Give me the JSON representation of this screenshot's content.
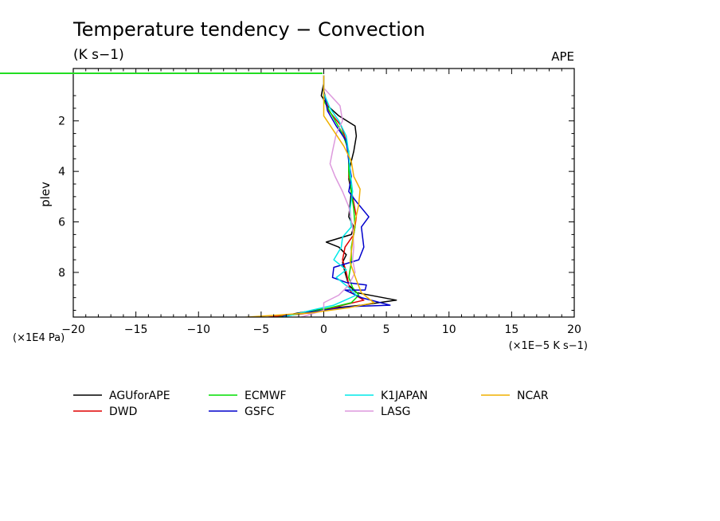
{
  "chart_data": {
    "type": "line",
    "title": "Temperature tendency − Convection",
    "units_label": "(K s−1)",
    "tag": "APE",
    "ylabel": "plev",
    "x_unit_label": "(×1E−5 K s−1)",
    "y_unit_label": "(×1E4 Pa)",
    "xlim": [
      -20,
      20
    ],
    "ylim": [
      0,
      9.8
    ],
    "y_inverted": true,
    "x_ticks": [
      -20,
      -15,
      -10,
      -5,
      0,
      5,
      10,
      15,
      20
    ],
    "x_tick_labels": [
      "−20",
      "−15",
      "−10",
      "−5",
      "0",
      "5",
      "10",
      "15",
      "20"
    ],
    "y_ticks": [
      2,
      4,
      6,
      8
    ],
    "y_tick_labels": [
      "2",
      "4",
      "6",
      "8"
    ],
    "series": [
      {
        "name": "AGUforAPE",
        "color": "#000000",
        "points": [
          [
            0,
            0.2
          ],
          [
            0,
            0.5
          ],
          [
            -0.2,
            1
          ],
          [
            0.3,
            1.4
          ],
          [
            1.2,
            1.8
          ],
          [
            2.5,
            2.2
          ],
          [
            2.6,
            2.6
          ],
          [
            2.4,
            3.2
          ],
          [
            2.1,
            3.8
          ],
          [
            2.0,
            4.3
          ],
          [
            2.2,
            4.8
          ],
          [
            2.1,
            5.3
          ],
          [
            2.0,
            5.8
          ],
          [
            2.4,
            6.2
          ],
          [
            2.2,
            6.5
          ],
          [
            0.2,
            6.8
          ],
          [
            1.2,
            7.0
          ],
          [
            1.8,
            7.3
          ],
          [
            1.5,
            7.6
          ],
          [
            1.7,
            8.0
          ],
          [
            2.0,
            8.5
          ],
          [
            2.6,
            8.8
          ],
          [
            5.8,
            9.1
          ],
          [
            3.0,
            9.3
          ],
          [
            0,
            9.45
          ],
          [
            -2,
            9.6
          ],
          [
            -4,
            9.8
          ]
        ]
      },
      {
        "name": "DWD",
        "color": "#e00000",
        "points": [
          [
            0,
            0.2
          ],
          [
            0,
            0.8
          ],
          [
            0.4,
            1.6
          ],
          [
            1.4,
            2.2
          ],
          [
            1.8,
            2.8
          ],
          [
            2.0,
            3.4
          ],
          [
            2.0,
            4.2
          ],
          [
            2.3,
            5.0
          ],
          [
            2.6,
            5.8
          ],
          [
            2.4,
            6.5
          ],
          [
            1.7,
            7.0
          ],
          [
            1.5,
            7.5
          ],
          [
            1.8,
            8.0
          ],
          [
            2.0,
            8.5
          ],
          [
            2.2,
            8.8
          ],
          [
            3.2,
            9.1
          ],
          [
            1.5,
            9.3
          ],
          [
            0.5,
            9.45
          ],
          [
            -1,
            9.6
          ],
          [
            -5,
            9.8
          ]
        ]
      },
      {
        "name": "ECMWF",
        "color": "#00dd00",
        "points": [
          [
            0,
            0.2
          ],
          [
            0,
            0.6
          ],
          [
            0,
            1.2
          ],
          [
            0.8,
            1.9
          ],
          [
            1.5,
            2.5
          ],
          [
            2.0,
            3.2
          ],
          [
            2.0,
            4.0
          ],
          [
            2.2,
            4.8
          ],
          [
            2.4,
            5.5
          ],
          [
            2.5,
            6.2
          ],
          [
            2.2,
            7.0
          ],
          [
            2.2,
            7.6
          ],
          [
            2.0,
            8.2
          ],
          [
            2.3,
            8.6
          ],
          [
            2.8,
            8.9
          ],
          [
            2.2,
            9.2
          ],
          [
            0.5,
            9.4
          ],
          [
            -1.5,
            9.6
          ],
          [
            -4,
            9.8
          ]
        ]
      },
      {
        "name": "GSFC",
        "color": "#0000cc",
        "points": [
          [
            0,
            0.2
          ],
          [
            0,
            0.8
          ],
          [
            0.3,
            1.6
          ],
          [
            1.0,
            2.2
          ],
          [
            1.8,
            2.8
          ],
          [
            2.0,
            3.6
          ],
          [
            2.2,
            4.2
          ],
          [
            2.0,
            4.8
          ],
          [
            2.6,
            5.2
          ],
          [
            3.6,
            5.8
          ],
          [
            3.0,
            6.2
          ],
          [
            3.2,
            7.0
          ],
          [
            2.8,
            7.5
          ],
          [
            0.8,
            7.8
          ],
          [
            0.7,
            8.2
          ],
          [
            1.8,
            8.4
          ],
          [
            3.4,
            8.5
          ],
          [
            3.3,
            8.7
          ],
          [
            1.7,
            8.7
          ],
          [
            3.0,
            9.0
          ],
          [
            5.3,
            9.3
          ],
          [
            2.2,
            9.35
          ],
          [
            0,
            9.5
          ],
          [
            -3,
            9.7
          ],
          [
            -3.5,
            9.8
          ]
        ]
      },
      {
        "name": "K1JAPAN",
        "color": "#00e8e8",
        "points": [
          [
            0,
            0.2
          ],
          [
            0,
            0.9
          ],
          [
            0.5,
            1.5
          ],
          [
            1.2,
            2.0
          ],
          [
            1.8,
            2.6
          ],
          [
            2.0,
            3.3
          ],
          [
            2.1,
            4.0
          ],
          [
            2.3,
            4.8
          ],
          [
            2.1,
            5.5
          ],
          [
            2.2,
            6.2
          ],
          [
            1.5,
            6.6
          ],
          [
            1.4,
            7.0
          ],
          [
            0.8,
            7.5
          ],
          [
            1.8,
            7.9
          ],
          [
            1.0,
            8.2
          ],
          [
            2.0,
            8.6
          ],
          [
            2.6,
            8.9
          ],
          [
            0.8,
            9.3
          ],
          [
            -1,
            9.5
          ],
          [
            -3.5,
            9.8
          ]
        ]
      },
      {
        "name": "LASG",
        "color": "#dd99dd",
        "points": [
          [
            0,
            0.2
          ],
          [
            0,
            0.7
          ],
          [
            1.3,
            1.4
          ],
          [
            1.5,
            2.0
          ],
          [
            1.0,
            2.5
          ],
          [
            0.7,
            3.2
          ],
          [
            0.5,
            3.7
          ],
          [
            0.9,
            4.2
          ],
          [
            1.5,
            4.8
          ],
          [
            2.0,
            5.4
          ],
          [
            2.3,
            6.2
          ],
          [
            2.4,
            7.0
          ],
          [
            2.3,
            7.5
          ],
          [
            2.5,
            8.0
          ],
          [
            2.0,
            8.5
          ],
          [
            1.2,
            8.9
          ],
          [
            0,
            9.2
          ],
          [
            0,
            9.5
          ],
          [
            -2,
            9.8
          ]
        ]
      },
      {
        "name": "NCAR",
        "color": "#f0b000",
        "points": [
          [
            0,
            0.2
          ],
          [
            0,
            1.0
          ],
          [
            0,
            1.8
          ],
          [
            0.8,
            2.4
          ],
          [
            1.6,
            3.0
          ],
          [
            2.2,
            3.6
          ],
          [
            2.4,
            4.2
          ],
          [
            2.9,
            4.7
          ],
          [
            2.8,
            5.3
          ],
          [
            2.5,
            6.0
          ],
          [
            2.3,
            6.8
          ],
          [
            2.1,
            7.6
          ],
          [
            2.6,
            8.3
          ],
          [
            3.0,
            8.8
          ],
          [
            4.0,
            9.2
          ],
          [
            2.0,
            9.4
          ],
          [
            -1,
            9.6
          ],
          [
            -7,
            9.8
          ]
        ]
      }
    ],
    "legend_position": "below-plot"
  }
}
